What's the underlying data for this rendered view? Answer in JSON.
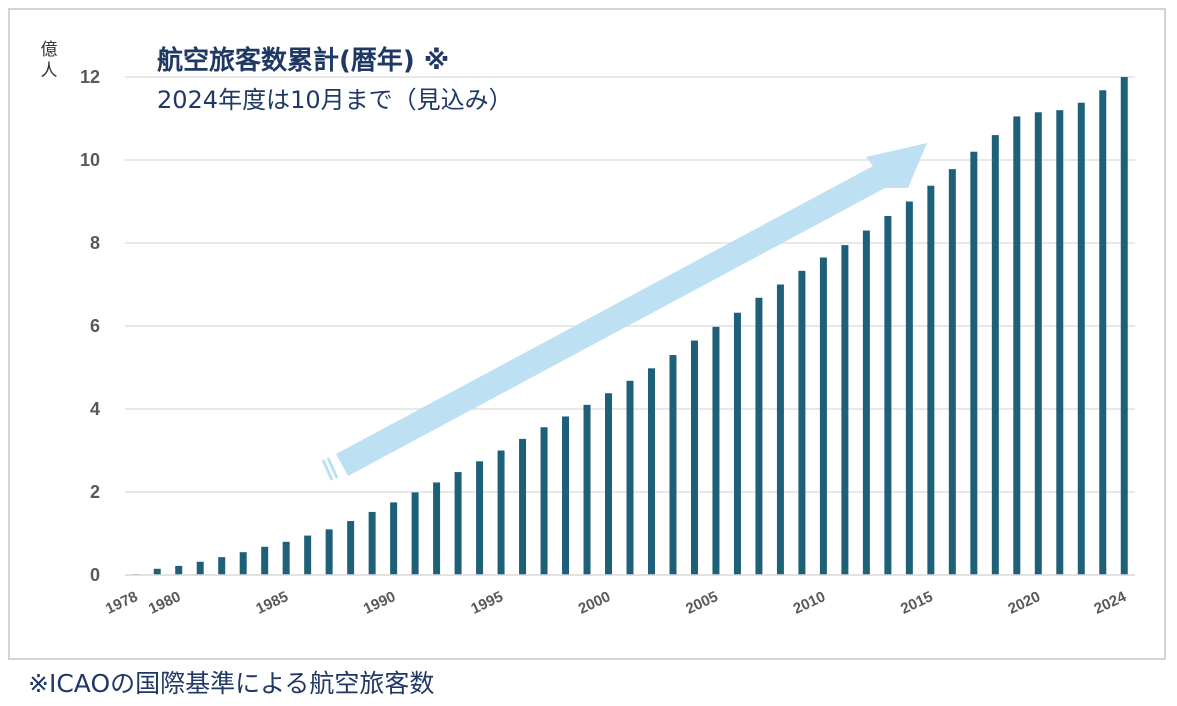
{
  "chart_data": {
    "type": "bar",
    "title": "航空旅客数累計(暦年) ※",
    "subtitle": "2024年度は10月まで（見込み）",
    "ylabel": "億人",
    "footnote": "※ICAOの国際基準による航空旅客数",
    "ylim": [
      0,
      12
    ],
    "yticks": [
      0,
      2,
      4,
      6,
      8,
      10,
      12
    ],
    "xtick_labels": [
      "1978",
      "1980",
      "1985",
      "1990",
      "1995",
      "2000",
      "2005",
      "2010",
      "2015",
      "2020",
      "2024"
    ],
    "categories": [
      "1978",
      "1979",
      "1980",
      "1981",
      "1982",
      "1983",
      "1984",
      "1985",
      "1986",
      "1987",
      "1988",
      "1989",
      "1990",
      "1991",
      "1992",
      "1993",
      "1994",
      "1995",
      "1996",
      "1997",
      "1998",
      "1999",
      "2000",
      "2001",
      "2002",
      "2003",
      "2004",
      "2005",
      "2006",
      "2007",
      "2008",
      "2009",
      "2010",
      "2011",
      "2012",
      "2013",
      "2014",
      "2015",
      "2016",
      "2017",
      "2018",
      "2019",
      "2020",
      "2021",
      "2022",
      "2023",
      "2024"
    ],
    "values": [
      0.02,
      0.15,
      0.22,
      0.32,
      0.43,
      0.55,
      0.68,
      0.8,
      0.95,
      1.1,
      1.3,
      1.52,
      1.75,
      1.99,
      2.23,
      2.48,
      2.74,
      3.0,
      3.28,
      3.56,
      3.82,
      4.1,
      4.38,
      4.68,
      4.98,
      5.3,
      5.65,
      5.98,
      6.32,
      6.68,
      7.0,
      7.33,
      7.65,
      7.95,
      8.3,
      8.65,
      9.0,
      9.38,
      9.78,
      10.2,
      10.6,
      11.05,
      11.15,
      11.2,
      11.38,
      11.68,
      12.0
    ],
    "bar_color": "#1f6079",
    "arrow_color": "#bde0f2",
    "grid_color": "#d9d9d9"
  }
}
